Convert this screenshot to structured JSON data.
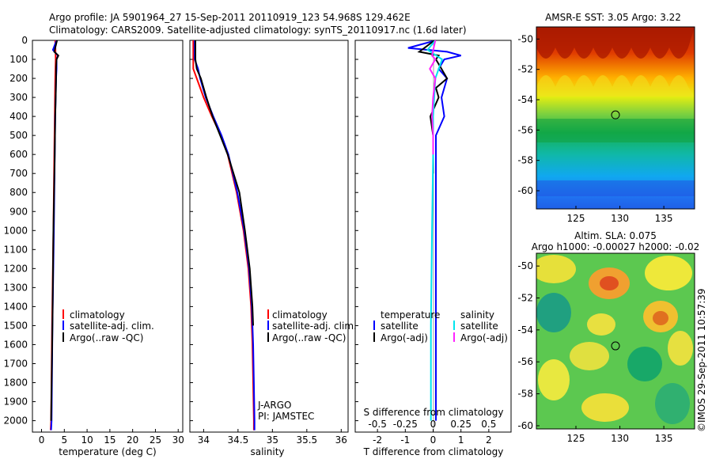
{
  "header": {
    "line1": "Argo profile: JA 5901964_27 15-Sep-2011 20110919_123 54.968S 129.462E",
    "line2": "Climatology: CARS2009. Satellite-adjusted climatology: synTS_20110917.nc (1.6d later)"
  },
  "colors": {
    "climatology": "#ff0000",
    "satellite": "#0000ff",
    "argo": "#000000",
    "s_satellite": "#00e5ee",
    "s_argo": "#ff22ff"
  },
  "chart_data": [
    {
      "type": "line",
      "xlabel": "temperature (deg C)",
      "ylabel": "",
      "xlim": [
        -2,
        31
      ],
      "ylim": [
        2060,
        0
      ],
      "xticks": [
        0,
        5,
        10,
        15,
        20,
        25,
        30
      ],
      "yticks": [
        0,
        100,
        200,
        300,
        400,
        500,
        600,
        700,
        800,
        900,
        1000,
        1100,
        1200,
        1300,
        1400,
        1500,
        1600,
        1700,
        1800,
        1900,
        2000
      ],
      "legend": [
        "climatology",
        "satellite-adj. clim.",
        "Argo(..raw -QC)"
      ],
      "series": [
        {
          "name": "climatology",
          "color": "#ff0000",
          "depth": [
            0,
            100,
            200,
            400,
            600,
            1000,
            1500,
            2000,
            2050
          ],
          "values": [
            3.0,
            3.1,
            3.0,
            2.9,
            2.8,
            2.6,
            2.3,
            2.1,
            2.0
          ]
        },
        {
          "name": "satellite-adj. clim.",
          "color": "#0000ff",
          "depth": [
            0,
            50,
            80,
            100,
            150,
            200,
            300,
            400,
            600,
            1000,
            1500,
            2000,
            2050
          ],
          "values": [
            3.3,
            2.5,
            3.6,
            3.3,
            3.3,
            3.2,
            3.1,
            3.0,
            2.9,
            2.7,
            2.4,
            2.2,
            2.1
          ]
        },
        {
          "name": "Argo(..raw -QC)",
          "color": "#000000",
          "depth": [
            0,
            60,
            80,
            100,
            150,
            200,
            300,
            400,
            600,
            1000,
            1500,
            2000
          ],
          "values": [
            3.4,
            2.8,
            3.7,
            3.3,
            3.2,
            3.2,
            3.1,
            3.0,
            2.9,
            2.6,
            2.4,
            2.1
          ]
        }
      ]
    },
    {
      "type": "line",
      "xlabel": "salinity",
      "xlim": [
        33.8,
        36.1
      ],
      "ylim": [
        2060,
        0
      ],
      "xticks": [
        34,
        34.5,
        35,
        35.5,
        36
      ],
      "legend": [
        "climatology",
        "satellite-adj. clim.",
        "Argo(..raw -QC)"
      ],
      "annotations": [
        "J-ARGO",
        "PI: JAMSTEC"
      ],
      "series": [
        {
          "name": "climatology",
          "color": "#ff0000",
          "depth": [
            0,
            150,
            200,
            300,
            400,
            500,
            600,
            800,
            1000,
            1200,
            1400,
            1600,
            1800,
            2000,
            2050
          ],
          "values": [
            33.85,
            33.85,
            33.9,
            34.0,
            34.12,
            34.25,
            34.35,
            34.48,
            34.58,
            34.65,
            34.69,
            34.71,
            34.72,
            34.73,
            34.73
          ]
        },
        {
          "name": "satellite-adj. clim.",
          "color": "#0000ff",
          "depth": [
            0,
            100,
            150,
            200,
            300,
            400,
            500,
            600,
            800,
            1000,
            1200,
            1400,
            1600,
            1800,
            2000,
            2050
          ],
          "values": [
            33.87,
            33.87,
            33.92,
            33.95,
            34.03,
            34.14,
            34.26,
            34.36,
            34.49,
            34.59,
            34.66,
            34.7,
            34.72,
            34.73,
            34.74,
            34.74
          ]
        },
        {
          "name": "Argo(..raw -QC)",
          "color": "#000000",
          "depth": [
            0,
            100,
            150,
            200,
            300,
            400,
            500,
            600,
            800,
            1000,
            1200,
            1400,
            1500
          ],
          "values": [
            33.88,
            33.88,
            33.9,
            33.96,
            34.04,
            34.13,
            34.24,
            34.35,
            34.52,
            34.6,
            34.67,
            34.71,
            34.72
          ]
        }
      ]
    },
    {
      "type": "line",
      "xlabel": "T difference from climatology",
      "xlim": [
        -2.8,
        2.8
      ],
      "ylim": [
        2060,
        0
      ],
      "xticks": [
        -2,
        -1,
        0,
        1,
        2
      ],
      "s_axis_label": "S difference from climatology",
      "s_ticks": [
        "-0.5",
        "-0.25",
        "0",
        "0.25",
        "0.5"
      ],
      "legend_heads": [
        "temperature",
        "salinity"
      ],
      "legend": [
        "satellite",
        "Argo(-adj)",
        "satellite",
        "Argo(-adj)"
      ],
      "series": [
        {
          "name": "T satellite",
          "color": "#0000ff",
          "depth": [
            0,
            40,
            60,
            80,
            100,
            150,
            200,
            300,
            400,
            500,
            600,
            1000,
            1500,
            2000
          ],
          "values": [
            0.1,
            -0.9,
            0.5,
            1.0,
            0.4,
            0.2,
            0.5,
            0.3,
            0.4,
            0.1,
            0.1,
            0.1,
            0.1,
            0.1
          ]
        },
        {
          "name": "T Argo(-adj)",
          "color": "#000000",
          "depth": [
            0,
            60,
            80,
            100,
            150,
            200,
            250,
            300,
            400,
            500,
            600,
            700
          ],
          "values": [
            0.05,
            -0.5,
            0.2,
            0.1,
            0.3,
            0.5,
            0.1,
            0.2,
            -0.1,
            0.0,
            0.0,
            0.0
          ]
        },
        {
          "name": "S satellite",
          "color": "#00e5ee",
          "depth": [
            0,
            50,
            100,
            200,
            400,
            600,
            1000,
            1500,
            2000
          ],
          "values": [
            0.02,
            -0.05,
            0.08,
            0.02,
            0.0,
            0.0,
            -0.01,
            -0.02,
            -0.02
          ]
        },
        {
          "name": "S Argo(-adj)",
          "color": "#ff22ff",
          "depth": [
            0,
            80,
            100,
            150,
            200,
            300,
            400,
            500,
            600
          ],
          "values": [
            0.02,
            -0.01,
            0.02,
            -0.03,
            0.02,
            0.0,
            -0.01,
            0.0,
            0.0
          ]
        }
      ]
    },
    {
      "type": "heatmap",
      "title": "AMSR-E SST: 3.05 Argo: 3.22",
      "xticks": [
        125,
        130,
        135
      ],
      "yticks": [
        -50,
        -52,
        -54,
        -56,
        -58,
        -60
      ],
      "xlim": [
        120.5,
        138.5
      ],
      "ylim": [
        -61.2,
        -49.2
      ],
      "marker": [
        129.5,
        -55.0
      ]
    },
    {
      "type": "heatmap",
      "title1": "Altim. SLA: 0.075",
      "title2": "Argo h1000: -0.00027 h2000: -0.02",
      "xticks": [
        125,
        130,
        135
      ],
      "yticks": [
        -50,
        -52,
        -54,
        -56,
        -58,
        -60
      ],
      "xlim": [
        120.5,
        138.5
      ],
      "ylim": [
        -60.2,
        -49.2
      ],
      "marker": [
        129.5,
        -55.0
      ]
    }
  ],
  "timestamp": "©IMOS 29-Sep-2011 10:57:39"
}
